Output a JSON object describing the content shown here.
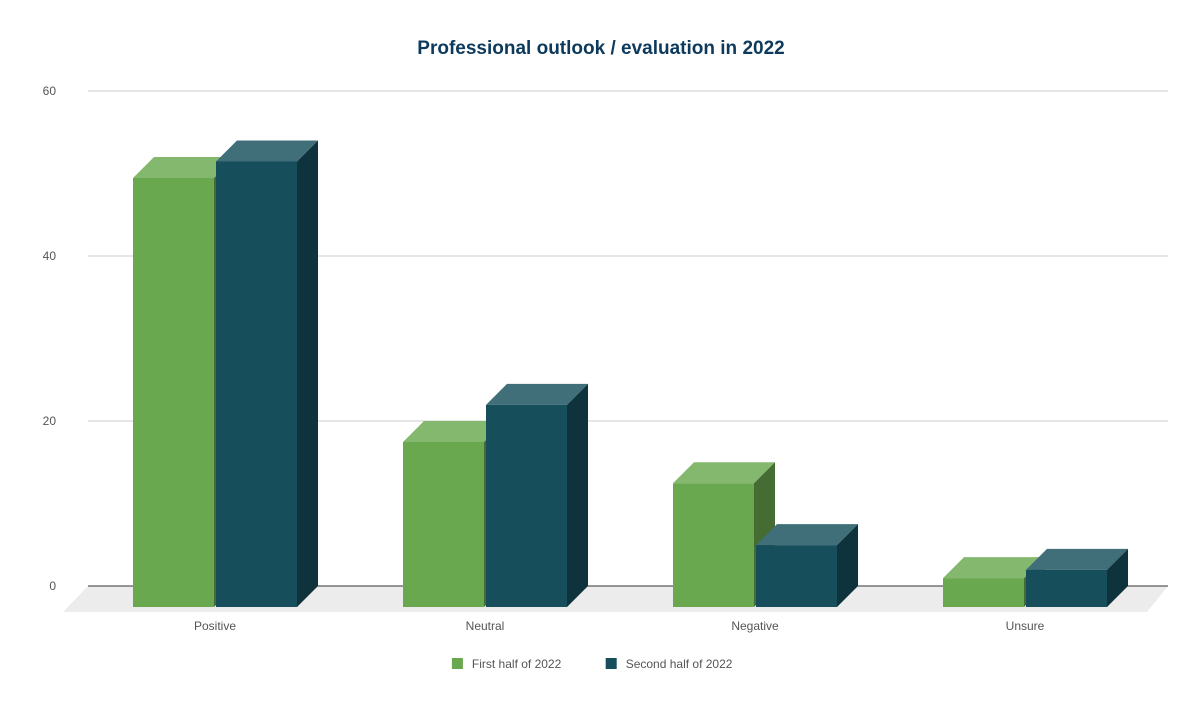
{
  "chart_data": {
    "type": "bar",
    "title": "Professional outlook / evaluation in 2022",
    "xlabel": "",
    "ylabel": "",
    "categories": [
      "Positive",
      "Neutral",
      "Negative",
      "Unsure"
    ],
    "series": [
      {
        "name": "First half of 2022",
        "values": [
          52,
          20,
          15,
          3.5
        ],
        "color": "#6aa84f"
      },
      {
        "name": "Second half of 2022",
        "values": [
          54,
          24.5,
          7.5,
          4.5
        ],
        "color": "#164e5c"
      }
    ],
    "ylim": [
      0,
      60
    ],
    "yticks": [
      0,
      20,
      40,
      60
    ],
    "grid": true,
    "legend": "bottom",
    "style": "3d"
  }
}
